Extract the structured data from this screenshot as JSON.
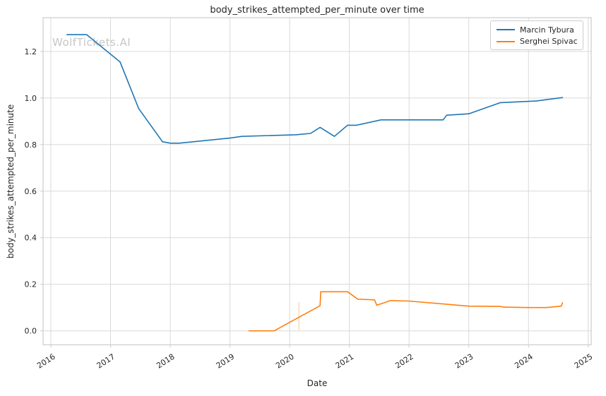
{
  "watermark": "WolfTickets.AI",
  "colors": {
    "series_blue": "#1f77b4",
    "series_orange": "#ff7f0e",
    "grid": "#d9d9d9",
    "spine": "#cccccc",
    "text": "#262626",
    "watermark": "#c6c6c6",
    "background": "#ffffff"
  },
  "chart_data": {
    "type": "line",
    "title": "body_strikes_attempted_per_minute over time",
    "xlabel": "Date",
    "ylabel": "body_strikes_attempted_per_minute",
    "xlim": [
      2015.87,
      2025.05
    ],
    "ylim": [
      -0.06,
      1.345
    ],
    "grid": true,
    "legend_position": "upper right",
    "x_tick_values": [
      2016,
      2017,
      2018,
      2019,
      2020,
      2021,
      2022,
      2023,
      2024,
      2025
    ],
    "x_tick_labels": [
      "2016",
      "2017",
      "2018",
      "2019",
      "2020",
      "2021",
      "2022",
      "2023",
      "2024",
      "2025"
    ],
    "y_tick_values": [
      0.0,
      0.2,
      0.4,
      0.6,
      0.8,
      1.0,
      1.2
    ],
    "y_tick_labels": [
      "0.0",
      "0.2",
      "0.4",
      "0.6",
      "0.8",
      "1.0",
      "1.2"
    ],
    "series": [
      {
        "name": "Marcin Tybura",
        "color": "#1f77b4",
        "points": [
          [
            2016.27,
            1.272
          ],
          [
            2016.6,
            1.272
          ],
          [
            2017.16,
            1.155
          ],
          [
            2017.47,
            0.955
          ],
          [
            2017.87,
            0.812
          ],
          [
            2018.0,
            0.806
          ],
          [
            2018.15,
            0.806
          ],
          [
            2019.0,
            0.828
          ],
          [
            2019.2,
            0.835
          ],
          [
            2020.1,
            0.842
          ],
          [
            2020.35,
            0.848
          ],
          [
            2020.51,
            0.874
          ],
          [
            2020.75,
            0.835
          ],
          [
            2020.97,
            0.883
          ],
          [
            2021.12,
            0.883
          ],
          [
            2021.53,
            0.906
          ],
          [
            2022.57,
            0.906
          ],
          [
            2022.63,
            0.926
          ],
          [
            2023.0,
            0.932
          ],
          [
            2023.53,
            0.98
          ],
          [
            2024.13,
            0.987
          ],
          [
            2024.57,
            1.002
          ]
        ]
      },
      {
        "name": "Serghei Spivac",
        "color": "#ff7f0e",
        "points": [
          [
            2019.32,
            0.0
          ],
          [
            2019.74,
            0.0
          ],
          [
            2020.51,
            0.108
          ],
          [
            2020.52,
            0.168
          ],
          [
            2020.97,
            0.168
          ],
          [
            2021.14,
            0.136
          ],
          [
            2021.42,
            0.133
          ],
          [
            2021.46,
            0.11
          ],
          [
            2021.69,
            0.13
          ],
          [
            2022.0,
            0.128
          ],
          [
            2022.68,
            0.113
          ],
          [
            2023.0,
            0.106
          ],
          [
            2023.53,
            0.105
          ],
          [
            2023.58,
            0.102
          ],
          [
            2024.0,
            0.1
          ],
          [
            2024.3,
            0.1
          ],
          [
            2024.55,
            0.106
          ],
          [
            2024.57,
            0.121
          ]
        ]
      }
    ],
    "vertical_marker": {
      "x": 2020.155,
      "y_from": 0.004,
      "y_to": 0.123,
      "color": "#ff7f0e",
      "opacity": 0.3
    }
  }
}
